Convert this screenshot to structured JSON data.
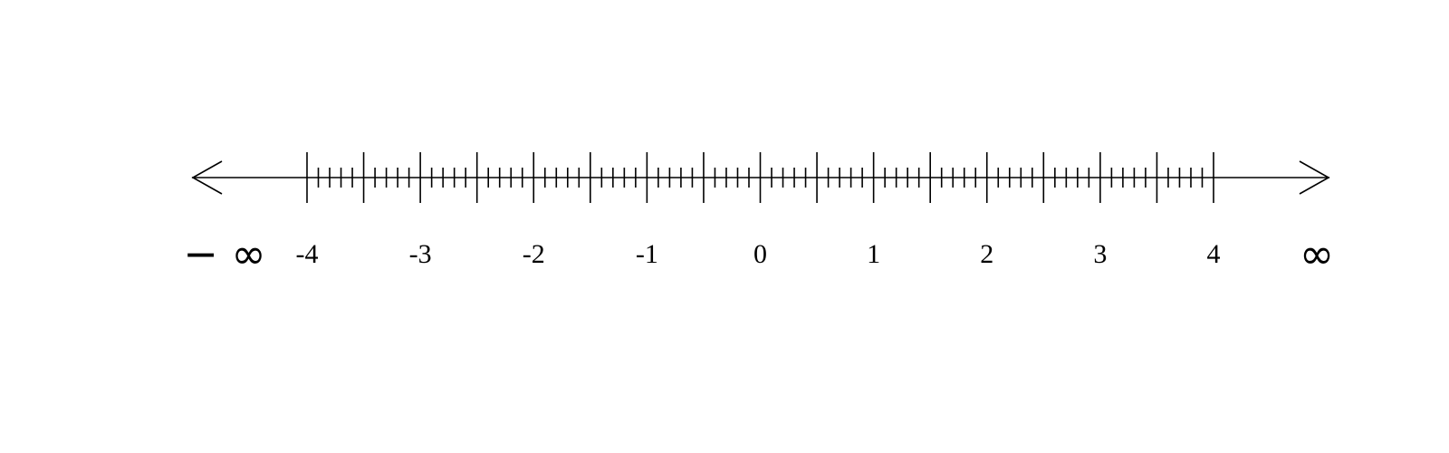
{
  "number_line": {
    "min": -4,
    "max": 4,
    "major_step": 0.5,
    "minor_step": 0.1,
    "labels": [
      "-4",
      "-3",
      "-2",
      "-1",
      "0",
      "1",
      "2",
      "3",
      "4"
    ],
    "label_values": [
      -4,
      -3,
      -2,
      -1,
      0,
      1,
      2,
      3,
      4
    ],
    "negative_infinity_label": "− ∞",
    "positive_infinity_label": "∞",
    "arrows": "both-ends",
    "color": "#000000"
  }
}
